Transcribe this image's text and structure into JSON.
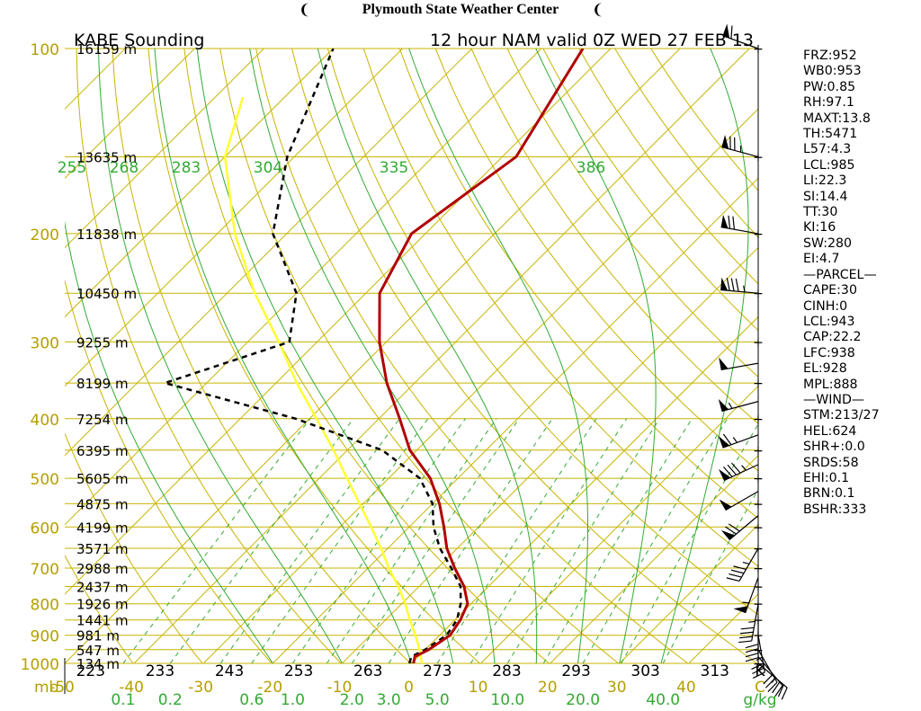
{
  "header": {
    "title": "Plymouth State Weather Center",
    "left_icon": "hurricane-flag-icon",
    "right_icon": "hurricane-flag-icon"
  },
  "chart_data": {
    "type": "line",
    "chart_kind": "skew-T log-P sounding",
    "station_label": "KABE Sounding",
    "model_label": "12 hour NAM valid 0Z WED 27 FEB 13",
    "pressure_axis": {
      "unit_label": "mb",
      "ticks": [
        100,
        200,
        300,
        400,
        500,
        600,
        700,
        800,
        900,
        1000
      ],
      "range": [
        1000,
        100
      ],
      "scale": "log"
    },
    "temperature_axis": {
      "ticks": [
        -50,
        -40,
        -30,
        -20,
        -10,
        0,
        10,
        20,
        30,
        40
      ],
      "end_label": "C",
      "range": [
        -50,
        50
      ]
    },
    "mixing_ratio_labels": {
      "values": [
        "0.1",
        "0.2",
        "0.6",
        "1.0",
        "2.0",
        "3.0",
        "5.0",
        "10.0",
        "20.0",
        "40.0"
      ],
      "unit": "g/kg"
    },
    "theta_e_labels": {
      "values": [
        "255",
        "268",
        "283",
        "304",
        "335",
        "386"
      ]
    },
    "theta_labels": {
      "values": [
        "223",
        "233",
        "243",
        "253",
        "263",
        "273",
        "283",
        "293",
        "303",
        "313"
      ],
      "unit": "K"
    },
    "height_labels": [
      {
        "p": 100,
        "label": "16159 m"
      },
      {
        "p": 150,
        "label": "13635 m"
      },
      {
        "p": 200,
        "label": "11838 m"
      },
      {
        "p": 250,
        "label": "10450 m"
      },
      {
        "p": 300,
        "label": "9255 m"
      },
      {
        "p": 350,
        "label": "8199 m"
      },
      {
        "p": 400,
        "label": "7254 m"
      },
      {
        "p": 450,
        "label": "6395 m"
      },
      {
        "p": 500,
        "label": "5605 m"
      },
      {
        "p": 550,
        "label": "4875 m"
      },
      {
        "p": 600,
        "label": "4199 m"
      },
      {
        "p": 650,
        "label": "3571 m"
      },
      {
        "p": 700,
        "label": "2988 m"
      },
      {
        "p": 750,
        "label": "2437 m"
      },
      {
        "p": 800,
        "label": "1926 m"
      },
      {
        "p": 850,
        "label": "1441 m"
      },
      {
        "p": 900,
        "label": "981 m"
      },
      {
        "p": 950,
        "label": "547 m"
      },
      {
        "p": 1000,
        "label": "134 m"
      }
    ],
    "temperature_profile": [
      {
        "p": 1000,
        "t": 0.3
      },
      {
        "p": 975,
        "t": -0.5
      },
      {
        "p": 950,
        "t": 0.5
      },
      {
        "p": 900,
        "t": 1.5
      },
      {
        "p": 850,
        "t": 0.8
      },
      {
        "p": 800,
        "t": -0.5
      },
      {
        "p": 750,
        "t": -3.5
      },
      {
        "p": 700,
        "t": -7.5
      },
      {
        "p": 650,
        "t": -11.5
      },
      {
        "p": 600,
        "t": -15.0
      },
      {
        "p": 550,
        "t": -19.0
      },
      {
        "p": 500,
        "t": -24.0
      },
      {
        "p": 450,
        "t": -31.0
      },
      {
        "p": 400,
        "t": -37.0
      },
      {
        "p": 350,
        "t": -44.0
      },
      {
        "p": 300,
        "t": -51.0
      },
      {
        "p": 250,
        "t": -58.0
      },
      {
        "p": 200,
        "t": -62.0
      },
      {
        "p": 150,
        "t": -58.0
      },
      {
        "p": 100,
        "t": -64.0
      }
    ],
    "dewpoint_profile": [
      {
        "p": 1000,
        "t": -0.3
      },
      {
        "p": 975,
        "t": -1.0
      },
      {
        "p": 950,
        "t": 0.0
      },
      {
        "p": 900,
        "t": 1.0
      },
      {
        "p": 850,
        "t": 0.3
      },
      {
        "p": 800,
        "t": -1.5
      },
      {
        "p": 750,
        "t": -4.0
      },
      {
        "p": 700,
        "t": -8.0
      },
      {
        "p": 650,
        "t": -12.5
      },
      {
        "p": 600,
        "t": -16.5
      },
      {
        "p": 550,
        "t": -20.0
      },
      {
        "p": 500,
        "t": -25.5
      },
      {
        "p": 450,
        "t": -35.0
      },
      {
        "p": 400,
        "t": -52.0
      },
      {
        "p": 350,
        "t": -76.0
      },
      {
        "p": 300,
        "t": -64.0
      },
      {
        "p": 250,
        "t": -70.0
      },
      {
        "p": 200,
        "t": -82.0
      },
      {
        "p": 150,
        "t": -91.0
      },
      {
        "p": 100,
        "t": -100.0
      }
    ],
    "parcel_profile": [
      {
        "p": 1000,
        "t": 1.5
      },
      {
        "p": 950,
        "t": -0.8
      },
      {
        "p": 900,
        "t": -3.5
      },
      {
        "p": 850,
        "t": -6.5
      },
      {
        "p": 800,
        "t": -9.5
      },
      {
        "p": 750,
        "t": -13.0
      },
      {
        "p": 700,
        "t": -17.0
      },
      {
        "p": 650,
        "t": -21.0
      },
      {
        "p": 600,
        "t": -25.5
      },
      {
        "p": 550,
        "t": -30.5
      },
      {
        "p": 500,
        "t": -36.0
      },
      {
        "p": 450,
        "t": -42.0
      },
      {
        "p": 400,
        "t": -49.0
      },
      {
        "p": 350,
        "t": -57.0
      },
      {
        "p": 300,
        "t": -65.5
      },
      {
        "p": 250,
        "t": -76.0
      },
      {
        "p": 200,
        "t": -87.5
      },
      {
        "p": 150,
        "t": -100.0
      },
      {
        "p": 120,
        "t": -106.0
      }
    ],
    "colors": {
      "temperature": "#b00000",
      "dewpoint": "#000000",
      "parcel": "#ffff33",
      "isotherm_isobar": "#c8b400",
      "dry_adiabat": "#c8b400",
      "moist_adiabat": "#33aa33",
      "mixing_ratio": "#33aa33",
      "label_green": "#33aa33",
      "label_gold": "#b4a000",
      "axis": "#000000"
    },
    "winds": [
      {
        "p": 100,
        "dir": 290,
        "spd": 60
      },
      {
        "p": 150,
        "dir": 285,
        "spd": 75
      },
      {
        "p": 200,
        "dir": 280,
        "spd": 70
      },
      {
        "p": 250,
        "dir": 275,
        "spd": 85
      },
      {
        "p": 325,
        "dir": 260,
        "spd": 50
      },
      {
        "p": 375,
        "dir": 255,
        "spd": 55
      },
      {
        "p": 425,
        "dir": 250,
        "spd": 65
      },
      {
        "p": 475,
        "dir": 245,
        "spd": 85
      },
      {
        "p": 525,
        "dir": 240,
        "spd": 50
      },
      {
        "p": 575,
        "dir": 230,
        "spd": 70
      },
      {
        "p": 650,
        "dir": 210,
        "spd": 45
      },
      {
        "p": 725,
        "dir": 200,
        "spd": 55
      },
      {
        "p": 800,
        "dir": 190,
        "spd": 45
      },
      {
        "p": 850,
        "dir": 180,
        "spd": 40
      },
      {
        "p": 900,
        "dir": 170,
        "spd": 35
      },
      {
        "p": 950,
        "dir": 150,
        "spd": 30
      },
      {
        "p": 975,
        "dir": 140,
        "spd": 25
      },
      {
        "p": 1000,
        "dir": 130,
        "spd": 20
      }
    ]
  },
  "indices": [
    "FRZ:952",
    "WB0:953",
    "PW:0.85",
    "RH:97.1",
    "MAXT:13.8",
    "TH:5471",
    "L57:4.3",
    "LCL:985",
    "LI:22.3",
    "SI:14.4",
    "TT:30",
    "KI:16",
    "SW:280",
    "EI:4.7",
    "—PARCEL—",
    "CAPE:30",
    "CINH:0",
    "LCL:943",
    "CAP:22.2",
    "LFC:938",
    "EL:928",
    "MPL:888",
    "—WIND—",
    "STM:213/27",
    "HEL:624",
    "SHR+:0.0",
    "SRDS:58",
    "EHI:0.1",
    "BRN:0.1",
    "BSHR:333"
  ]
}
